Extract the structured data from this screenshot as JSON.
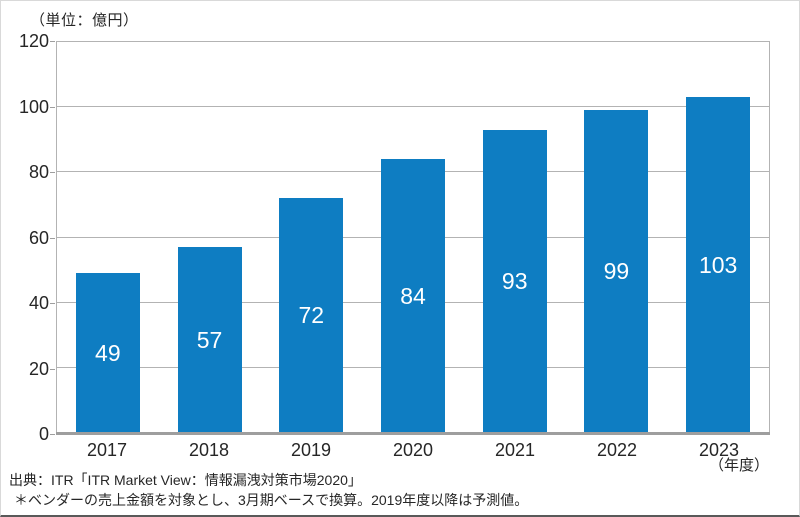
{
  "chart_data": {
    "type": "bar",
    "unit_label": "（単位：億円）",
    "x_axis_unit": "（年度）",
    "categories": [
      "2017",
      "2018",
      "2019",
      "2020",
      "2021",
      "2022",
      "2023"
    ],
    "values": [
      49,
      57,
      72,
      84,
      93,
      99,
      103
    ],
    "ylim": [
      0,
      120
    ],
    "yticks": [
      0,
      20,
      40,
      60,
      80,
      100,
      120
    ],
    "grid": true,
    "legend": "none",
    "bar_color": "#0e7dc2",
    "bar_label_color": "#ffffff"
  },
  "footer": {
    "source": "出典：ITR「ITR Market View：情報漏洩対策市場2020」",
    "note": "＊ベンダーの売上金額を対象とし、3月期ベースで換算。2019年度以降は予測値。"
  }
}
